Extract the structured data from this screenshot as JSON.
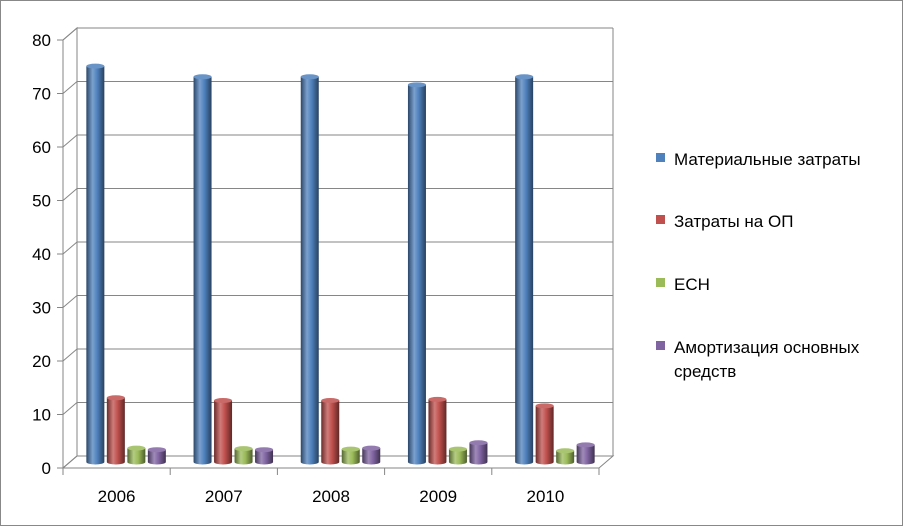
{
  "chart_data": {
    "type": "bar",
    "style": "3d-cylinder",
    "categories": [
      "2006",
      "2007",
      "2008",
      "2009",
      "2010"
    ],
    "ylim": [
      0,
      80
    ],
    "yticks": [
      "0",
      "10",
      "20",
      "30",
      "40",
      "50",
      "60",
      "70",
      "80"
    ],
    "grid": true,
    "legend_position": "right",
    "series": [
      {
        "name": "Материальные затраты",
        "color": "#4F81BD",
        "values": [
          74,
          72,
          72,
          70.5,
          72
        ]
      },
      {
        "name": "Затраты на ОП",
        "color": "#C0504D",
        "values": [
          12,
          11.5,
          11.5,
          11.7,
          10.5
        ]
      },
      {
        "name": "ЕСН",
        "color": "#9BBB59",
        "values": [
          2.6,
          2.5,
          2.4,
          2.4,
          2.1
        ]
      },
      {
        "name": "Амортизация основных средств",
        "color": "#8064A2",
        "values": [
          2.3,
          2.3,
          2.6,
          3.6,
          3.2
        ]
      }
    ],
    "legend_lines": [
      [
        "Материальные затраты"
      ],
      [
        "Затраты на ОП"
      ],
      [
        "ЕСН"
      ],
      [
        "Амортизация основных",
        "средств"
      ]
    ]
  }
}
